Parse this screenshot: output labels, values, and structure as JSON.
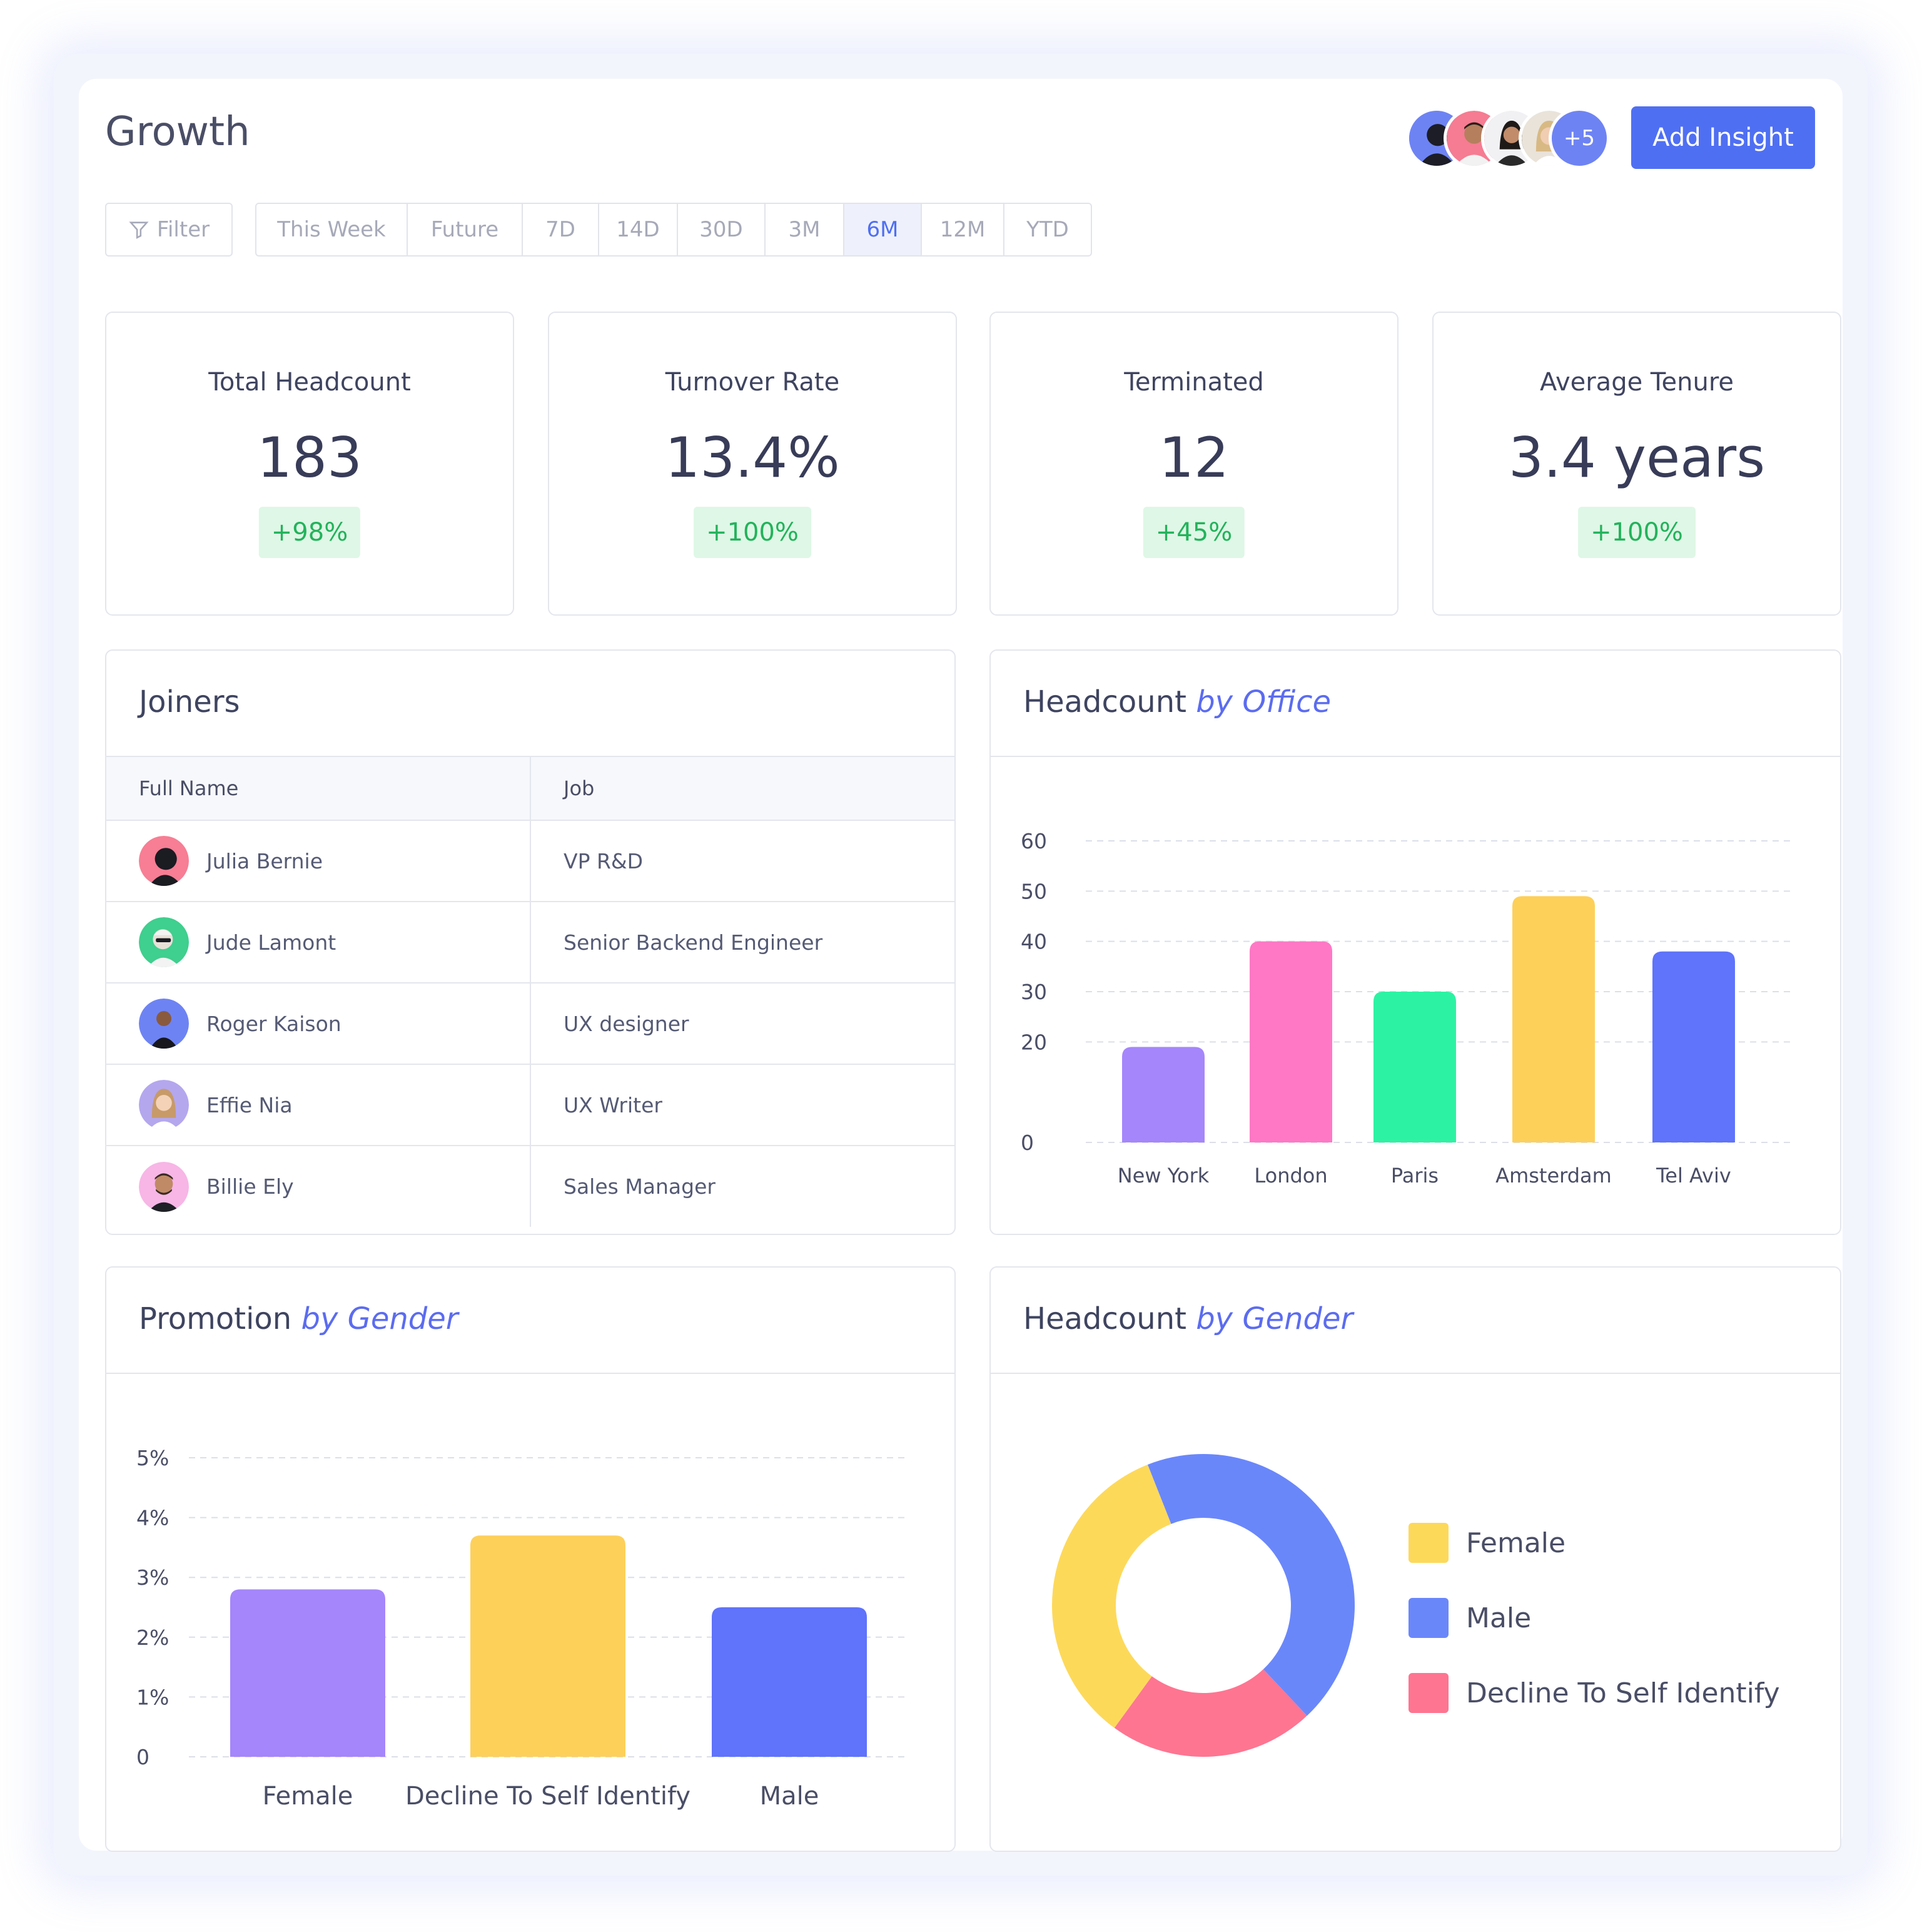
{
  "header": {
    "title": "Growth",
    "avatars_more": "+5",
    "add_insight": "Add Insight"
  },
  "filter": {
    "label": "Filter"
  },
  "ranges": [
    "This Week",
    "Future",
    "7D",
    "14D",
    "30D",
    "3M",
    "6M",
    "12M",
    "YTD"
  ],
  "active_range": "6M",
  "kpis": [
    {
      "title": "Total Headcount",
      "value": "183",
      "change": "+98%"
    },
    {
      "title": "Turnover Rate",
      "value": "13.4%",
      "change": "+100%"
    },
    {
      "title": "Terminated",
      "value": "12",
      "change": "+45%"
    },
    {
      "title": "Average Tenure",
      "value": "3.4 years",
      "change": "+100%"
    }
  ],
  "joiners": {
    "title": "Joiners",
    "columns": [
      "Full Name",
      "Job"
    ],
    "rows": [
      {
        "name": "Julia Bernie",
        "job": "VP R&D"
      },
      {
        "name": "Jude Lamont",
        "job": "Senior Backend Engineer"
      },
      {
        "name": "Roger Kaison",
        "job": "UX designer"
      },
      {
        "name": "Effie Nia",
        "job": "UX Writer"
      },
      {
        "name": "Billie Ely",
        "job": "Sales Manager"
      }
    ]
  },
  "cards": {
    "office": {
      "title": "Headcount",
      "title_em": "by Office"
    },
    "promotion": {
      "title": "Promotion",
      "title_em": "by Gender"
    },
    "gender": {
      "title": "Headcount",
      "title_em": "by Gender"
    }
  },
  "colors": {
    "accent": "#4f6ff3",
    "badge_bg": "#dff7e6",
    "badge_text": "#22b35b",
    "purple": "#a586fb",
    "pink": "#ff78c5",
    "green": "#2cf3a3",
    "yellow": "#fdd05a",
    "blue": "#5f73fb",
    "coral": "#fe7591",
    "donut_blue": "#6a87fa"
  },
  "chart_data": [
    {
      "type": "bar",
      "categories": [
        "New York",
        "London",
        "Paris",
        "Amsterdam",
        "Tel Aviv"
      ],
      "values": [
        19,
        40,
        30,
        49,
        38
      ],
      "colors": [
        "#a586fb",
        "#ff78c5",
        "#2cf3a3",
        "#fdd05a",
        "#5f73fb"
      ],
      "yticks": [
        "0",
        "20",
        "30",
        "40",
        "50",
        "60"
      ],
      "ylim": [
        0,
        60
      ],
      "grid": true
    },
    {
      "type": "bar",
      "categories": [
        "Female",
        "Decline To Self Identify",
        "Male"
      ],
      "values": [
        2.8,
        3.7,
        2.5
      ],
      "colors": [
        "#a586fb",
        "#fdd05a",
        "#5f73fb"
      ],
      "yticks": [
        "0",
        "1%",
        "2%",
        "3%",
        "4%",
        "5%"
      ],
      "ylim": [
        0,
        5
      ],
      "grid": true
    },
    {
      "type": "pie",
      "labels": [
        "Male",
        "Decline To Self Identify",
        "Female"
      ],
      "values": [
        44,
        22,
        34
      ],
      "colors": [
        "#6a87fa",
        "#fe7591",
        "#fdd95a"
      ],
      "donut": true,
      "legend": [
        "Female",
        "Male",
        "Decline To Self Identify"
      ],
      "legend_colors": [
        "#fdd95a",
        "#6a87fa",
        "#fe7591"
      ],
      "legend_position": "right"
    }
  ]
}
